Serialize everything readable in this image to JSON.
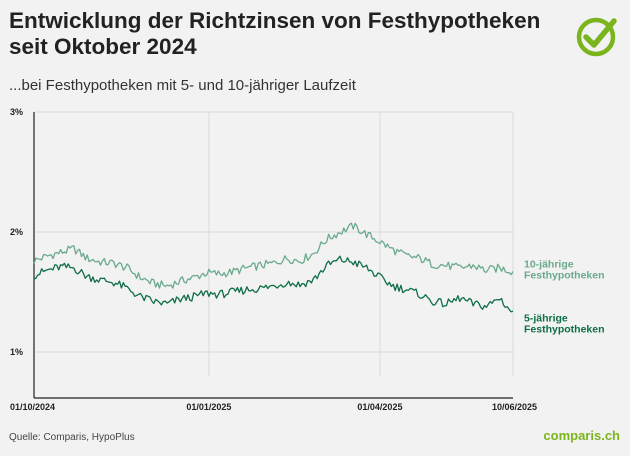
{
  "header": {
    "title": "Entwicklung der Richtzinsen von Festhypotheken seit Oktober 2024",
    "subtitle": "...bei Festhypotheken mit 5- und 10-jähriger Laufzeit"
  },
  "footer": {
    "source": "Quelle: Comparis, HypoPlus",
    "brand": "comparis.ch"
  },
  "colors": {
    "ten_year": "#6aaa8c",
    "five_year": "#0e6e45",
    "brand": "#7ab51d",
    "grid": "#d9d9d9"
  },
  "logo": {
    "icon": "check-circle-icon"
  },
  "chart_data": {
    "type": "line",
    "title": "Entwicklung der Richtzinsen von Festhypotheken seit Oktober 2024",
    "subtitle": "...bei Festhypotheken mit 5- und 10-jähriger Laufzeit",
    "xlabel": "",
    "ylabel": "",
    "x_range": [
      "2024-10-01",
      "2025-06-10"
    ],
    "ylim": [
      0.8,
      3.0
    ],
    "y_ticks": [
      {
        "value": 1,
        "label": "1%"
      },
      {
        "value": 2,
        "label": "2%"
      },
      {
        "value": 3,
        "label": "3%"
      }
    ],
    "x_ticks": [
      {
        "date": "2024-10-01",
        "label": "01/10/2024"
      },
      {
        "date": "2025-01-01",
        "label": "01/01/2025"
      },
      {
        "date": "2025-04-01",
        "label": "01/04/2025"
      },
      {
        "date": "2025-06-10",
        "label": "10/06/2025"
      }
    ],
    "grid": true,
    "legend": "direct labels at right end of lines",
    "series": [
      {
        "name": "10-jährige Festhypotheken",
        "label_lines": [
          "10-jährige",
          "Festhypotheken"
        ],
        "points": [
          [
            "2024-10-01",
            1.76
          ],
          [
            "2024-10-08",
            1.8
          ],
          [
            "2024-10-15",
            1.83
          ],
          [
            "2024-10-22",
            1.86
          ],
          [
            "2024-10-29",
            1.78
          ],
          [
            "2024-11-05",
            1.75
          ],
          [
            "2024-11-12",
            1.74
          ],
          [
            "2024-11-19",
            1.7
          ],
          [
            "2024-11-26",
            1.62
          ],
          [
            "2024-12-03",
            1.57
          ],
          [
            "2024-12-10",
            1.55
          ],
          [
            "2024-12-17",
            1.59
          ],
          [
            "2024-12-24",
            1.62
          ],
          [
            "2024-12-31",
            1.66
          ],
          [
            "2025-01-07",
            1.65
          ],
          [
            "2025-01-14",
            1.67
          ],
          [
            "2025-01-21",
            1.7
          ],
          [
            "2025-01-28",
            1.72
          ],
          [
            "2025-02-04",
            1.74
          ],
          [
            "2025-02-11",
            1.78
          ],
          [
            "2025-02-18",
            1.76
          ],
          [
            "2025-02-25",
            1.82
          ],
          [
            "2025-03-04",
            1.94
          ],
          [
            "2025-03-11",
            2.0
          ],
          [
            "2025-03-18",
            2.05
          ],
          [
            "2025-03-25",
            1.98
          ],
          [
            "2025-04-01",
            1.92
          ],
          [
            "2025-04-08",
            1.85
          ],
          [
            "2025-04-15",
            1.8
          ],
          [
            "2025-04-22",
            1.78
          ],
          [
            "2025-04-29",
            1.73
          ],
          [
            "2025-05-06",
            1.72
          ],
          [
            "2025-05-13",
            1.7
          ],
          [
            "2025-05-20",
            1.72
          ],
          [
            "2025-05-27",
            1.68
          ],
          [
            "2025-06-03",
            1.7
          ],
          [
            "2025-06-10",
            1.67
          ]
        ]
      },
      {
        "name": "5-jährige Festhypotheken",
        "label_lines": [
          "5-jährige",
          "Festhypotheken"
        ],
        "points": [
          [
            "2024-10-01",
            1.64
          ],
          [
            "2024-10-08",
            1.68
          ],
          [
            "2024-10-15",
            1.71
          ],
          [
            "2024-10-22",
            1.7
          ],
          [
            "2024-10-29",
            1.63
          ],
          [
            "2024-11-05",
            1.6
          ],
          [
            "2024-11-12",
            1.58
          ],
          [
            "2024-11-19",
            1.53
          ],
          [
            "2024-11-26",
            1.46
          ],
          [
            "2024-12-03",
            1.42
          ],
          [
            "2024-12-10",
            1.4
          ],
          [
            "2024-12-17",
            1.44
          ],
          [
            "2024-12-24",
            1.46
          ],
          [
            "2024-12-31",
            1.49
          ],
          [
            "2025-01-07",
            1.48
          ],
          [
            "2025-01-14",
            1.5
          ],
          [
            "2025-01-21",
            1.52
          ],
          [
            "2025-01-28",
            1.53
          ],
          [
            "2025-02-04",
            1.55
          ],
          [
            "2025-02-11",
            1.58
          ],
          [
            "2025-02-18",
            1.56
          ],
          [
            "2025-02-25",
            1.6
          ],
          [
            "2025-03-04",
            1.72
          ],
          [
            "2025-03-11",
            1.77
          ],
          [
            "2025-03-18",
            1.75
          ],
          [
            "2025-03-25",
            1.7
          ],
          [
            "2025-04-01",
            1.62
          ],
          [
            "2025-04-08",
            1.55
          ],
          [
            "2025-04-15",
            1.52
          ],
          [
            "2025-04-22",
            1.48
          ],
          [
            "2025-04-29",
            1.42
          ],
          [
            "2025-05-06",
            1.4
          ],
          [
            "2025-05-13",
            1.45
          ],
          [
            "2025-05-20",
            1.4
          ],
          [
            "2025-05-27",
            1.38
          ],
          [
            "2025-06-03",
            1.45
          ],
          [
            "2025-06-10",
            1.32
          ]
        ]
      }
    ]
  }
}
